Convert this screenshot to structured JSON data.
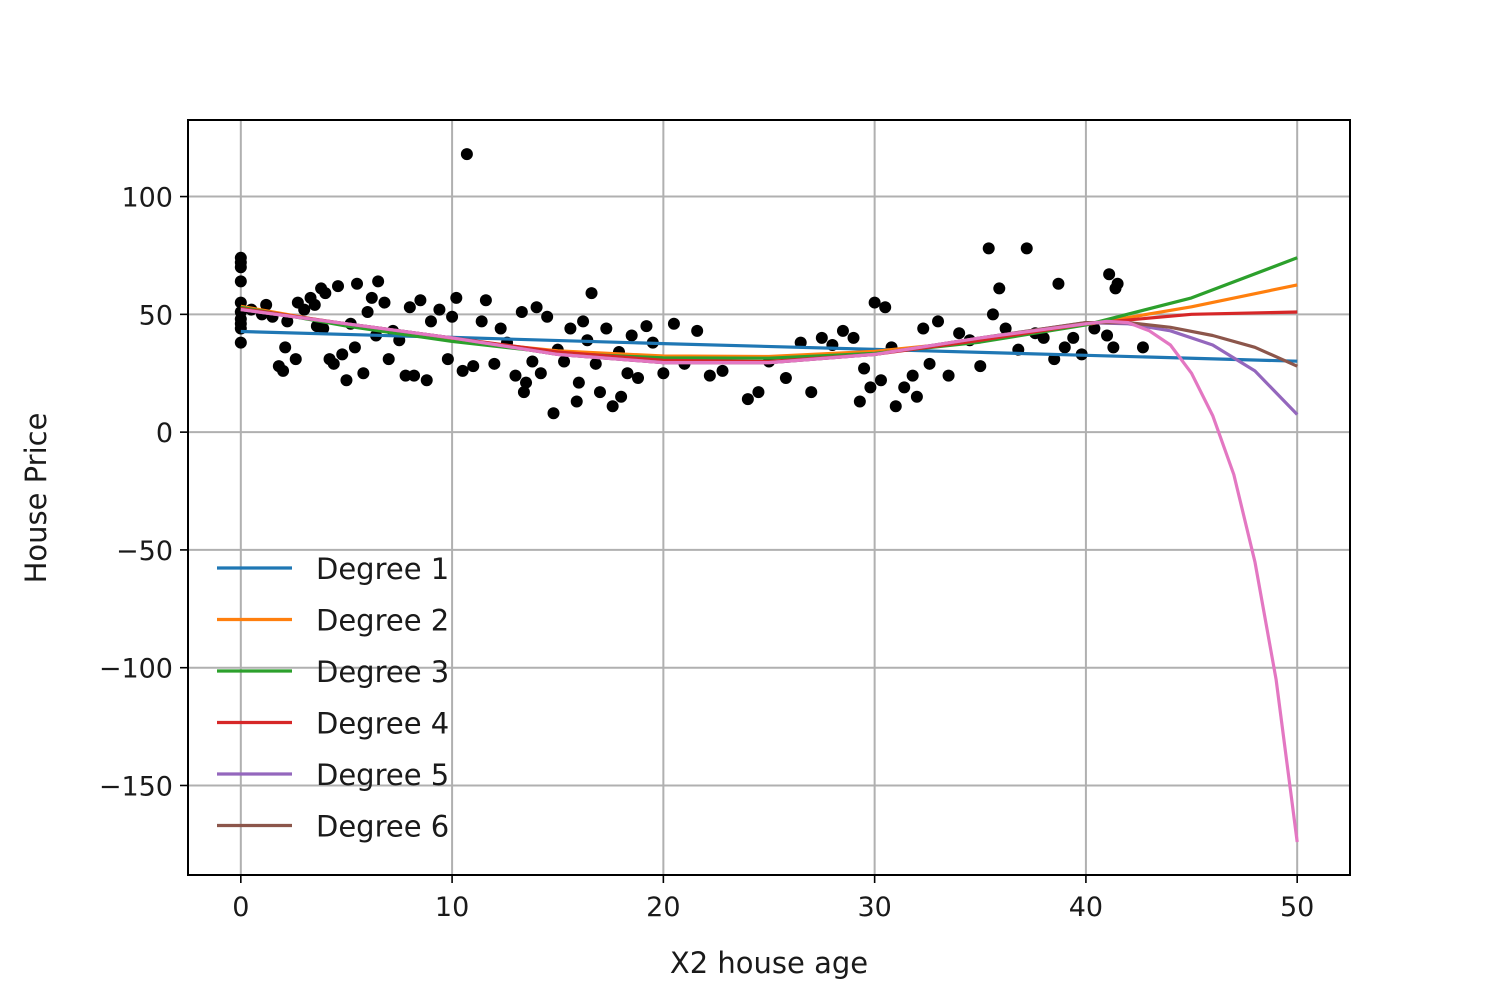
{
  "chart_data": {
    "type": "scatter",
    "title": "",
    "xlabel": "X2 house age",
    "ylabel": "House Price",
    "xlim": [
      -2.5,
      52.5
    ],
    "ylim": [
      -188,
      132.5
    ],
    "xticks": [
      0,
      10,
      20,
      30,
      40,
      50
    ],
    "xtick_labels": [
      "0",
      "10",
      "20",
      "30",
      "40",
      "50"
    ],
    "yticks": [
      100,
      50,
      0,
      -50,
      -100,
      -150
    ],
    "ytick_labels": [
      "100",
      "50",
      "0",
      "−50",
      "−100",
      "−150"
    ],
    "grid": true,
    "legend_position": "lower-left",
    "scatter": {
      "name": "observations",
      "color": "#000000",
      "points": [
        [
          0,
          74
        ],
        [
          0,
          72
        ],
        [
          0,
          70
        ],
        [
          0,
          64
        ],
        [
          0,
          55
        ],
        [
          0,
          51
        ],
        [
          0,
          48
        ],
        [
          0,
          46
        ],
        [
          0,
          44
        ],
        [
          0,
          38
        ],
        [
          0.5,
          52
        ],
        [
          1,
          50
        ],
        [
          1.2,
          54
        ],
        [
          1.5,
          49
        ],
        [
          1.8,
          28
        ],
        [
          2,
          26
        ],
        [
          2.1,
          36
        ],
        [
          2.2,
          47
        ],
        [
          2.6,
          31
        ],
        [
          2.7,
          55
        ],
        [
          3,
          52
        ],
        [
          3.3,
          57
        ],
        [
          3.5,
          54
        ],
        [
          3.6,
          45
        ],
        [
          3.8,
          61
        ],
        [
          3.9,
          44
        ],
        [
          4,
          59
        ],
        [
          4.2,
          31
        ],
        [
          4.4,
          29
        ],
        [
          4.6,
          62
        ],
        [
          4.8,
          33
        ],
        [
          5,
          22
        ],
        [
          5.2,
          46
        ],
        [
          5.4,
          36
        ],
        [
          5.5,
          63
        ],
        [
          5.8,
          25
        ],
        [
          6,
          51
        ],
        [
          6.2,
          57
        ],
        [
          6.4,
          41
        ],
        [
          6.5,
          64
        ],
        [
          6.8,
          55
        ],
        [
          7,
          31
        ],
        [
          7.2,
          43
        ],
        [
          7.5,
          39
        ],
        [
          7.8,
          24
        ],
        [
          8,
          53
        ],
        [
          8.2,
          24
        ],
        [
          8.5,
          56
        ],
        [
          8.8,
          22
        ],
        [
          9,
          47
        ],
        [
          9.4,
          52
        ],
        [
          9.8,
          31
        ],
        [
          10,
          49
        ],
        [
          10.2,
          57
        ],
        [
          10.5,
          26
        ],
        [
          10.7,
          118
        ],
        [
          11,
          28
        ],
        [
          11.4,
          47
        ],
        [
          11.6,
          56
        ],
        [
          12,
          29
        ],
        [
          12.3,
          44
        ],
        [
          12.6,
          38
        ],
        [
          13,
          24
        ],
        [
          13.3,
          51
        ],
        [
          13.4,
          17
        ],
        [
          13.5,
          21
        ],
        [
          13.8,
          30
        ],
        [
          14,
          53
        ],
        [
          14.2,
          25
        ],
        [
          14.5,
          49
        ],
        [
          14.8,
          8
        ],
        [
          15,
          35
        ],
        [
          15.3,
          30
        ],
        [
          15.6,
          44
        ],
        [
          15.9,
          13
        ],
        [
          16,
          21
        ],
        [
          16.2,
          47
        ],
        [
          16.4,
          39
        ],
        [
          16.6,
          59
        ],
        [
          16.8,
          29
        ],
        [
          17,
          17
        ],
        [
          17.3,
          44
        ],
        [
          17.6,
          11
        ],
        [
          17.9,
          34
        ],
        [
          18,
          15
        ],
        [
          18.3,
          25
        ],
        [
          18.5,
          41
        ],
        [
          18.8,
          23
        ],
        [
          19.2,
          45
        ],
        [
          19.5,
          38
        ],
        [
          20,
          25
        ],
        [
          20.5,
          46
        ],
        [
          21,
          29
        ],
        [
          21.6,
          43
        ],
        [
          22.2,
          24
        ],
        [
          22.8,
          26
        ],
        [
          24,
          14
        ],
        [
          24.5,
          17
        ],
        [
          25,
          30
        ],
        [
          25.8,
          23
        ],
        [
          26.5,
          38
        ],
        [
          27,
          17
        ],
        [
          27.5,
          40
        ],
        [
          28,
          37
        ],
        [
          28.5,
          43
        ],
        [
          29,
          40
        ],
        [
          29.3,
          13
        ],
        [
          29.5,
          27
        ],
        [
          29.8,
          19
        ],
        [
          30,
          55
        ],
        [
          30.3,
          22
        ],
        [
          30.5,
          53
        ],
        [
          30.8,
          36
        ],
        [
          31,
          11
        ],
        [
          31.4,
          19
        ],
        [
          31.8,
          24
        ],
        [
          32,
          15
        ],
        [
          32.3,
          44
        ],
        [
          32.6,
          29
        ],
        [
          33,
          47
        ],
        [
          33.5,
          24
        ],
        [
          34,
          42
        ],
        [
          34.5,
          39
        ],
        [
          35,
          28
        ],
        [
          35.4,
          78
        ],
        [
          35.6,
          50
        ],
        [
          35.9,
          61
        ],
        [
          36.2,
          44
        ],
        [
          36.8,
          35
        ],
        [
          37.2,
          78
        ],
        [
          37.6,
          42
        ],
        [
          38,
          40
        ],
        [
          38.5,
          31
        ],
        [
          38.7,
          63
        ],
        [
          39,
          36
        ],
        [
          39.4,
          40
        ],
        [
          39.8,
          33
        ],
        [
          40.4,
          44
        ],
        [
          41,
          41
        ],
        [
          41.1,
          67
        ],
        [
          41.3,
          36
        ],
        [
          41.4,
          61
        ],
        [
          41.5,
          63
        ],
        [
          42.7,
          36
        ]
      ]
    },
    "series": [
      {
        "name": "Degree 1",
        "color": "#1f77b4",
        "x": [
          0,
          10,
          20,
          30,
          40,
          50
        ],
        "y": [
          42.7,
          40.2,
          37.6,
          35.1,
          32.6,
          30.1
        ]
      },
      {
        "name": "Degree 2",
        "color": "#ff7f0e",
        "x": [
          0,
          5,
          10,
          15,
          20,
          25,
          30,
          35,
          40,
          45,
          50
        ],
        "y": [
          53.4,
          45.5,
          39.2,
          34.5,
          32.3,
          32.1,
          34.3,
          38.8,
          45.6,
          53.2,
          62.5
        ]
      },
      {
        "name": "Degree 3",
        "color": "#2ca02c",
        "x": [
          0,
          5,
          10,
          15,
          20,
          25,
          30,
          35,
          40,
          45,
          50
        ],
        "y": [
          53,
          45,
          38.5,
          33.5,
          31.5,
          31.4,
          33.4,
          38.2,
          45.5,
          57,
          74
        ]
      },
      {
        "name": "Degree 4",
        "color": "#d62728",
        "x": [
          0,
          5,
          10,
          15,
          20,
          25,
          30,
          35,
          40,
          45,
          50
        ],
        "y": [
          52.5,
          46,
          40,
          34,
          30.5,
          30,
          33,
          39,
          46,
          50,
          51
        ]
      },
      {
        "name": "Degree 5",
        "color": "#9467bd",
        "x": [
          0,
          5,
          10,
          15,
          20,
          25,
          30,
          35,
          40,
          42,
          44,
          46,
          48,
          50
        ],
        "y": [
          52,
          46,
          40,
          33,
          29.5,
          29.5,
          33,
          40,
          46.5,
          46,
          43,
          37,
          26,
          7.5
        ]
      },
      {
        "name": "Degree 6",
        "color": "#8c564b",
        "x": [
          0,
          5,
          10,
          15,
          20,
          25,
          30,
          35,
          40,
          42,
          44,
          46,
          48,
          50
        ],
        "y": [
          52,
          46,
          40,
          33,
          29.5,
          29.5,
          33,
          40,
          46.5,
          46.5,
          44.5,
          41,
          36,
          28
        ]
      },
      {
        "name": "",
        "color": "#e377c2",
        "x": [
          0,
          5,
          10,
          15,
          20,
          25,
          30,
          35,
          40,
          41,
          42,
          43,
          44,
          45,
          46,
          47,
          48,
          49,
          50
        ],
        "y": [
          52,
          46,
          40,
          33,
          29.5,
          29.5,
          33,
          40,
          46,
          47,
          46.5,
          43,
          37,
          25,
          7,
          -18,
          -55,
          -105,
          -174
        ]
      }
    ],
    "legend": [
      "Degree 1",
      "Degree 2",
      "Degree 3",
      "Degree 4",
      "Degree 5",
      "Degree 6"
    ]
  }
}
